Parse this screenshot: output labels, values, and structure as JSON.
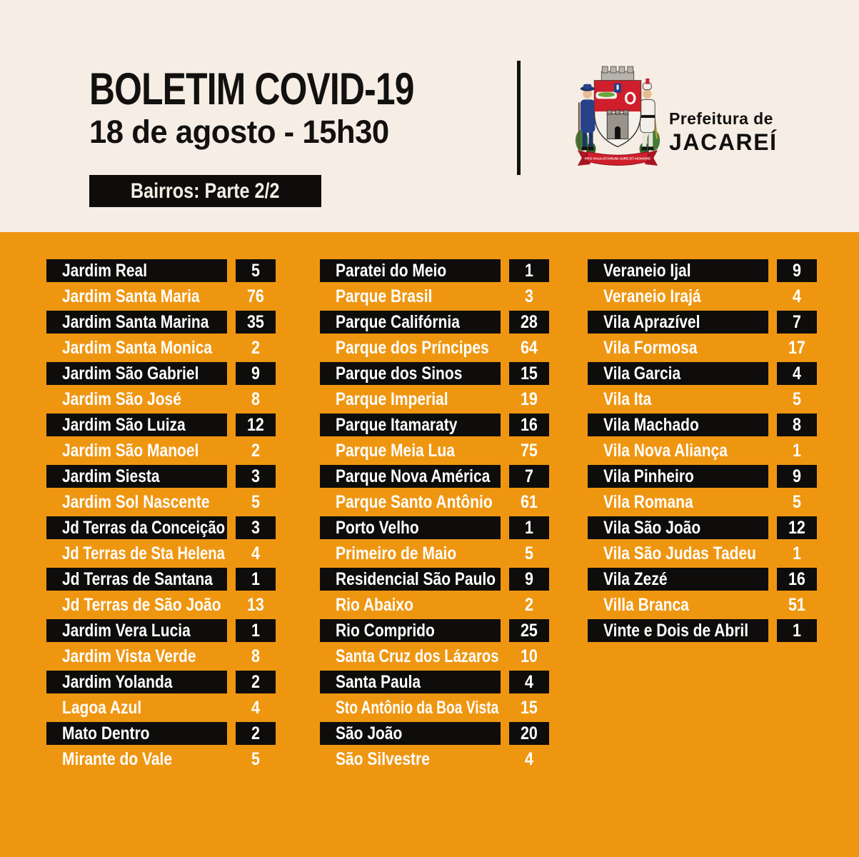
{
  "header": {
    "title_line1": "BOLETIM COVID-19",
    "title_line2": "18 de agosto - 15h30",
    "badge": "Bairros: Parte 2/2",
    "org_line1": "Prefeitura de",
    "org_line2": "JACAREÍ",
    "crest_motto": "PRO PAULISTARUM-JURE-ET-HONORE"
  },
  "colors": {
    "page_orange": "#ef9611",
    "header_cream": "#f6eee5",
    "box_black": "#0e0d0b",
    "text_white": "#ffffff",
    "crest_red": "#cf1e2c",
    "crest_blue": "#27418a",
    "crest_green": "#417c39"
  },
  "columns": [
    {
      "rows": [
        {
          "name": "Jardim Real",
          "value": "5",
          "highlight": true
        },
        {
          "name": "Jardim Santa Maria",
          "value": "76",
          "highlight": false
        },
        {
          "name": "Jardim Santa Marina",
          "value": "35",
          "highlight": true
        },
        {
          "name": "Jardim Santa Monica",
          "value": "2",
          "highlight": false
        },
        {
          "name": "Jardim São Gabriel",
          "value": "9",
          "highlight": true
        },
        {
          "name": "Jardim São José",
          "value": "8",
          "highlight": false
        },
        {
          "name": "Jardim São Luiza",
          "value": "12",
          "highlight": true
        },
        {
          "name": "Jardim São Manoel",
          "value": "2",
          "highlight": false
        },
        {
          "name": "Jardim Siesta",
          "value": "3",
          "highlight": true
        },
        {
          "name": "Jardim Sol Nascente",
          "value": "5",
          "highlight": false
        },
        {
          "name": "Jd Terras da Conceição",
          "value": "3",
          "highlight": true
        },
        {
          "name": "Jd Terras de Sta Helena",
          "value": "4",
          "highlight": false
        },
        {
          "name": "Jd Terras de Santana",
          "value": "1",
          "highlight": true
        },
        {
          "name": "Jd Terras de São João",
          "value": "13",
          "highlight": false
        },
        {
          "name": "Jardim Vera Lucia",
          "value": "1",
          "highlight": true
        },
        {
          "name": "Jardim Vista Verde",
          "value": "8",
          "highlight": false
        },
        {
          "name": "Jardim Yolanda",
          "value": "2",
          "highlight": true
        },
        {
          "name": "Lagoa Azul",
          "value": "4",
          "highlight": false
        },
        {
          "name": "Mato Dentro",
          "value": "2",
          "highlight": true
        },
        {
          "name": "Mirante do Vale",
          "value": "5",
          "highlight": false
        }
      ]
    },
    {
      "rows": [
        {
          "name": "Paratei do Meio",
          "value": "1",
          "highlight": true
        },
        {
          "name": "Parque Brasil",
          "value": "3",
          "highlight": false
        },
        {
          "name": "Parque Califórnia",
          "value": "28",
          "highlight": true
        },
        {
          "name": "Parque dos Príncipes",
          "value": "64",
          "highlight": false
        },
        {
          "name": "Parque dos Sinos",
          "value": "15",
          "highlight": true
        },
        {
          "name": "Parque Imperial",
          "value": "19",
          "highlight": false
        },
        {
          "name": "Parque Itamaraty",
          "value": "16",
          "highlight": true
        },
        {
          "name": "Parque Meia Lua",
          "value": "75",
          "highlight": false
        },
        {
          "name": "Parque Nova América",
          "value": "7",
          "highlight": true
        },
        {
          "name": "Parque Santo Antônio",
          "value": "61",
          "highlight": false
        },
        {
          "name": "Porto Velho",
          "value": "1",
          "highlight": true
        },
        {
          "name": "Primeiro de Maio",
          "value": "5",
          "highlight": false
        },
        {
          "name": "Residencial São Paulo",
          "value": "9",
          "highlight": true
        },
        {
          "name": "Rio Abaixo",
          "value": "2",
          "highlight": false
        },
        {
          "name": "Rio Comprido",
          "value": "25",
          "highlight": true
        },
        {
          "name": "Santa Cruz dos Lázaros",
          "value": "10",
          "highlight": false
        },
        {
          "name": "Santa Paula",
          "value": "4",
          "highlight": true
        },
        {
          "name": "Sto Antônio da Boa Vista",
          "value": "15",
          "highlight": false
        },
        {
          "name": "São João",
          "value": "20",
          "highlight": true
        },
        {
          "name": "São Silvestre",
          "value": "4",
          "highlight": false
        }
      ]
    },
    {
      "rows": [
        {
          "name": "Veraneio Ijal",
          "value": "9",
          "highlight": true
        },
        {
          "name": "Veraneio Irajá",
          "value": "4",
          "highlight": false
        },
        {
          "name": "Vila Aprazível",
          "value": "7",
          "highlight": true
        },
        {
          "name": "Vila Formosa",
          "value": "17",
          "highlight": false
        },
        {
          "name": "Vila Garcia",
          "value": "4",
          "highlight": true
        },
        {
          "name": "Vila Ita",
          "value": "5",
          "highlight": false
        },
        {
          "name": "Vila Machado",
          "value": "8",
          "highlight": true
        },
        {
          "name": "Vila Nova Aliança",
          "value": "1",
          "highlight": false
        },
        {
          "name": "Vila Pinheiro",
          "value": "9",
          "highlight": true
        },
        {
          "name": "Vila Romana",
          "value": "5",
          "highlight": false
        },
        {
          "name": "Vila São João",
          "value": "12",
          "highlight": true
        },
        {
          "name": "Vila São Judas Tadeu",
          "value": "1",
          "highlight": false
        },
        {
          "name": "Vila Zezé",
          "value": "16",
          "highlight": true
        },
        {
          "name": "Villa Branca",
          "value": "51",
          "highlight": false
        },
        {
          "name": "Vinte e Dois de Abril",
          "value": "1",
          "highlight": true
        }
      ]
    }
  ]
}
